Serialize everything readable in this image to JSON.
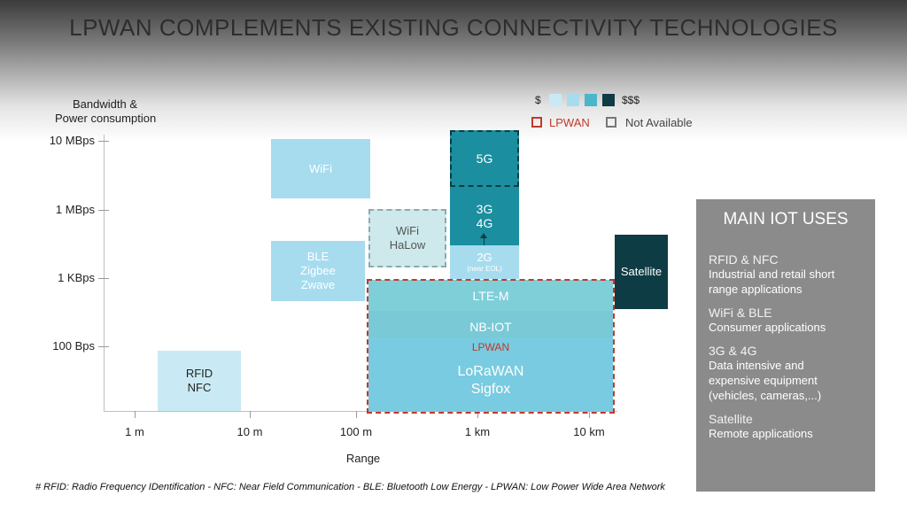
{
  "title": "LPWAN COMPLEMENTS EXISTING CONNECTIVITY TECHNOLOGIES",
  "y_axis": {
    "label_line1": "Bandwidth &",
    "label_line2": "Power consumption",
    "ticks": [
      "10 MBps",
      "1 MBps",
      "1 KBps",
      "100 Bps"
    ]
  },
  "x_axis": {
    "label": "Range",
    "ticks": [
      "1 m",
      "10 m",
      "100 m",
      "1 km",
      "10 km"
    ]
  },
  "legend": {
    "cost_low": "$",
    "cost_high": "$$$",
    "cost_colors": [
      "#c9eaf5",
      "#a7dcef",
      "#4bb6c9",
      "#1b8e9f",
      "#0e3c44"
    ],
    "lpwan_label": "LPWAN",
    "not_available_label": "Not Available"
  },
  "boxes": {
    "wifi": "WiFi",
    "ble": [
      "BLE",
      "Zigbee",
      "Zwave"
    ],
    "rfid": [
      "RFID",
      "NFC"
    ],
    "wifi_halow": [
      "WiFi",
      "HaLow"
    ],
    "g5": "5G",
    "g34": [
      "3G",
      "4G"
    ],
    "g2": "2G",
    "g2_note": "(near EOL)",
    "lte_m": "LTE-M",
    "nb_iot": "NB-IOT",
    "lpwan_tag": "LPWAN",
    "lora": [
      "LoRaWAN",
      "Sigfox"
    ],
    "satellite": "Satellite"
  },
  "colors": {
    "lightest": "#c9eaf5",
    "light": "#a7dcef",
    "mid": "#7cd0e0",
    "teal": "#1b8e9f",
    "dark": "#0e3c44",
    "lpwan_red": "#c0392b"
  },
  "main_uses": {
    "heading": "MAIN IOT USES",
    "items": [
      {
        "title": "RFID & NFC",
        "desc": [
          "Industrial and retail short",
          "range applications"
        ]
      },
      {
        "title": "WiFi & BLE",
        "desc": [
          "Consumer applications"
        ]
      },
      {
        "title": "3G & 4G",
        "desc": [
          "Data intensive and",
          "expensive equipment",
          "(vehicles, cameras,...)"
        ]
      },
      {
        "title": "Satellite",
        "desc": [
          "Remote applications"
        ]
      }
    ]
  },
  "footnote": "# RFID: Radio Frequency IDentification - NFC: Near Field Communication - BLE: Bluetooth Low Energy - LPWAN: Low Power Wide Area Network"
}
